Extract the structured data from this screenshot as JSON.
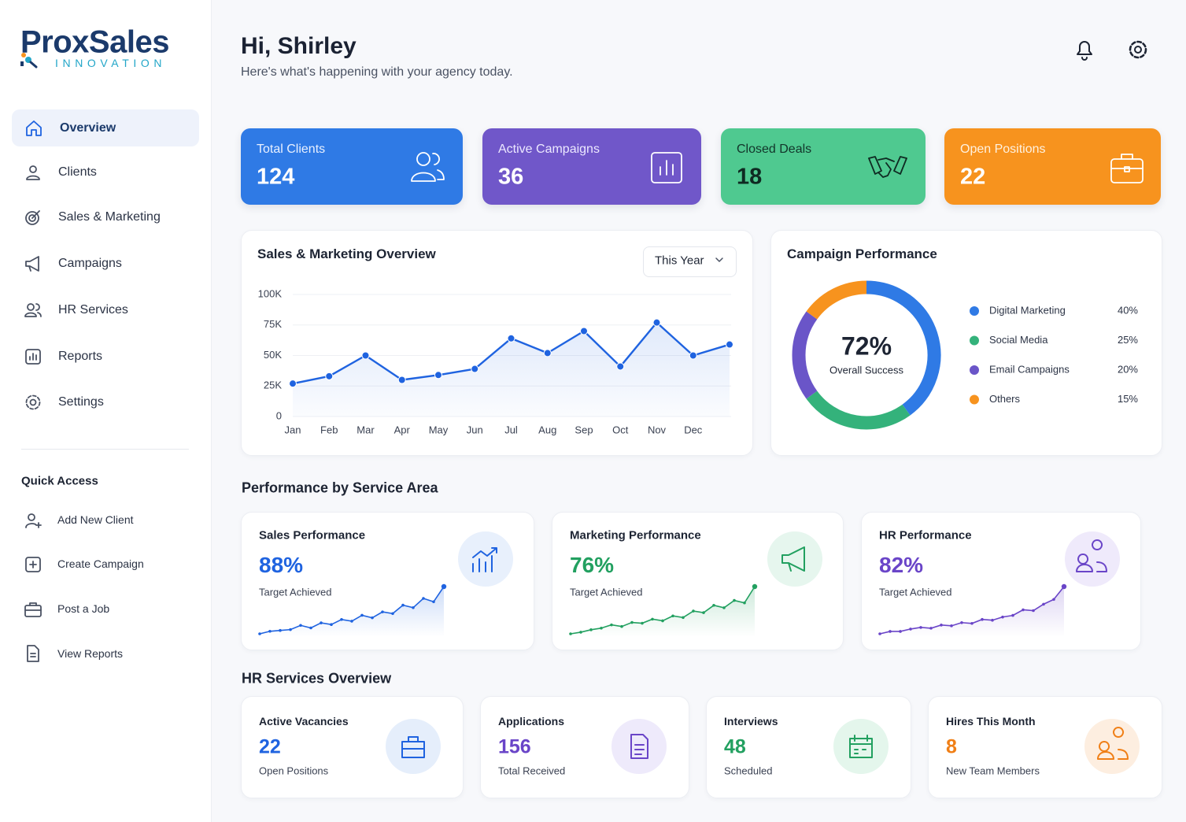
{
  "brand": {
    "name": "ProxSales",
    "tagline": "INNOVATION"
  },
  "nav": [
    "Overview",
    "Clients",
    "Sales & Marketing",
    "Campaigns",
    "HR Services",
    "Reports",
    "Settings"
  ],
  "quick_access": {
    "title": "Quick Access",
    "items": [
      "Add New Client",
      "Create Campaign",
      "Post a Job",
      "View Reports"
    ]
  },
  "header": {
    "greeting": "Hi, Shirley",
    "subtitle": "Here's what's happening with your agency today."
  },
  "stats": [
    {
      "label": "Total Clients",
      "value": 124
    },
    {
      "label": "Active Campaigns",
      "value": 36
    },
    {
      "label": "Closed Deals",
      "value": 18
    },
    {
      "label": "Open Positions",
      "value": 22
    }
  ],
  "sales_filter": "This Year",
  "sections": {
    "performance": "Performance by Service Area",
    "hr": "HR Services Overview"
  },
  "performance": [
    {
      "title": "Sales Performance",
      "value": "88%",
      "caption": "Target Achieved"
    },
    {
      "title": "Marketing Performance",
      "value": "76%",
      "caption": "Target Achieved"
    },
    {
      "title": "HR Performance",
      "value": "82%",
      "caption": "Target Achieved"
    }
  ],
  "hr_services": [
    {
      "title": "Active Vacancies",
      "value": 22,
      "caption": "Open Positions"
    },
    {
      "title": "Applications",
      "value": 156,
      "caption": "Total Received"
    },
    {
      "title": "Interviews",
      "value": 48,
      "caption": "Scheduled"
    },
    {
      "title": "Hires This Month",
      "value": 8,
      "caption": "New Team Members"
    }
  ],
  "chart_data": [
    {
      "type": "line",
      "title": "Sales & Marketing Overview",
      "categories": [
        "Jan",
        "Feb",
        "Mar",
        "Apr",
        "May",
        "Jun",
        "Jul",
        "Aug",
        "Sep",
        "Oct",
        "Nov",
        "Dec",
        null
      ],
      "values": [
        27000,
        33000,
        50000,
        30000,
        34000,
        39000,
        64000,
        52000,
        70000,
        41000,
        77000,
        50000,
        59000
      ],
      "color": "#1f63e0",
      "ylim": [
        0,
        100000
      ],
      "yticks": [
        0,
        {
          "value": 25000,
          "label": "25K"
        },
        {
          "value": 50000,
          "label": "50K"
        },
        {
          "value": 75000,
          "label": "75K"
        },
        {
          "value": 100000,
          "label": "100K"
        }
      ],
      "grid": true
    },
    {
      "type": "pie",
      "title": "Campaign Performance",
      "center_value": "72%",
      "center_caption": "Overall Success",
      "categories": [
        "Digital Marketing",
        "Social Media",
        "Email Campaigns",
        "Others"
      ],
      "values": [
        40,
        25,
        20,
        15
      ],
      "value_labels": [
        "40%",
        "25%",
        "20%",
        "15%"
      ],
      "colors": [
        "#2f7ae5",
        "#34b27b",
        "#6a55c8",
        "#f7931e"
      ]
    },
    {
      "type": "line",
      "values": [
        2,
        5,
        6,
        7,
        12,
        9,
        15,
        13,
        19,
        17,
        24,
        21,
        28,
        26,
        36,
        33,
        44,
        40,
        58
      ],
      "color": "#1f63e0"
    },
    {
      "type": "line",
      "values": [
        2,
        4,
        7,
        9,
        13,
        11,
        16,
        15,
        20,
        18,
        24,
        22,
        30,
        28,
        37,
        34,
        43,
        40,
        60
      ],
      "color": "#22a060"
    },
    {
      "type": "line",
      "values": [
        3,
        6,
        6,
        9,
        11,
        10,
        14,
        13,
        17,
        16,
        21,
        20,
        24,
        26,
        33,
        32,
        40,
        46,
        62
      ],
      "color": "#6a45c8"
    }
  ]
}
